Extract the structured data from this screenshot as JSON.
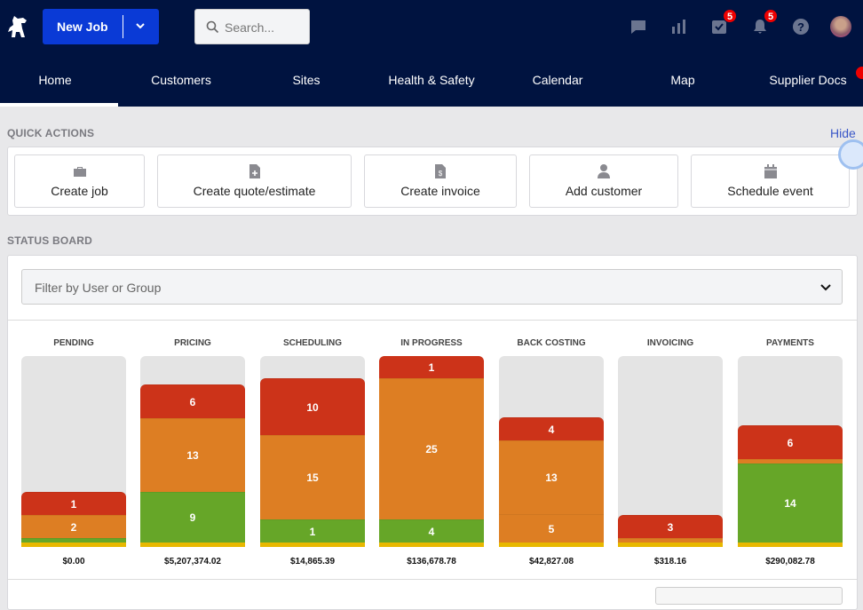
{
  "header": {
    "new_job_label": "New Job",
    "search_placeholder": "Search...",
    "badges": {
      "tasks": "5",
      "notifications": "5"
    }
  },
  "tabs": [
    "Home",
    "Customers",
    "Sites",
    "Health & Safety",
    "Calendar",
    "Map",
    "Supplier Docs"
  ],
  "quick_actions": {
    "title": "QUICK ACTIONS",
    "hide_label": "Hide",
    "items": [
      "Create job",
      "Create quote/estimate",
      "Create invoice",
      "Add customer",
      "Schedule event"
    ]
  },
  "status_board": {
    "title": "STATUS BOARD",
    "filter_placeholder": "Filter by User or Group"
  },
  "colors": {
    "red": "#cc3319",
    "orange": "#dd7e23",
    "green": "#66a628",
    "yellow": "#e8b800"
  },
  "chart_data": {
    "type": "bar",
    "stacked": true,
    "categories": [
      "PENDING",
      "PRICING",
      "SCHEDULING",
      "IN PROGRESS",
      "BACK COSTING",
      "INVOICING",
      "PAYMENTS"
    ],
    "amounts": [
      "$0.00",
      "$5,207,374.02",
      "$14,865.39",
      "$136,678.78",
      "$42,827.08",
      "$318.16",
      "$290,082.78"
    ],
    "columns": [
      [
        {
          "c": "red",
          "v": 1
        },
        {
          "c": "orange",
          "v": 2
        },
        {
          "c": "green",
          "v": 0
        }
      ],
      [
        {
          "c": "red",
          "v": 6
        },
        {
          "c": "orange",
          "v": 13
        },
        {
          "c": "green",
          "v": 9
        }
      ],
      [
        {
          "c": "red",
          "v": 10
        },
        {
          "c": "orange",
          "v": 15
        },
        {
          "c": "green",
          "v": 1
        }
      ],
      [
        {
          "c": "red",
          "v": 1
        },
        {
          "c": "orange",
          "v": 25
        },
        {
          "c": "green",
          "v": 4
        }
      ],
      [
        {
          "c": "red",
          "v": 4
        },
        {
          "c": "orange",
          "v": 13
        },
        {
          "c": "orange",
          "v": 5
        }
      ],
      [
        {
          "c": "red",
          "v": 3
        },
        {
          "c": "orange",
          "v": 0
        }
      ],
      [
        {
          "c": "red",
          "v": 6
        },
        {
          "c": "orange",
          "v": 0
        },
        {
          "c": "green",
          "v": 14
        }
      ]
    ]
  }
}
